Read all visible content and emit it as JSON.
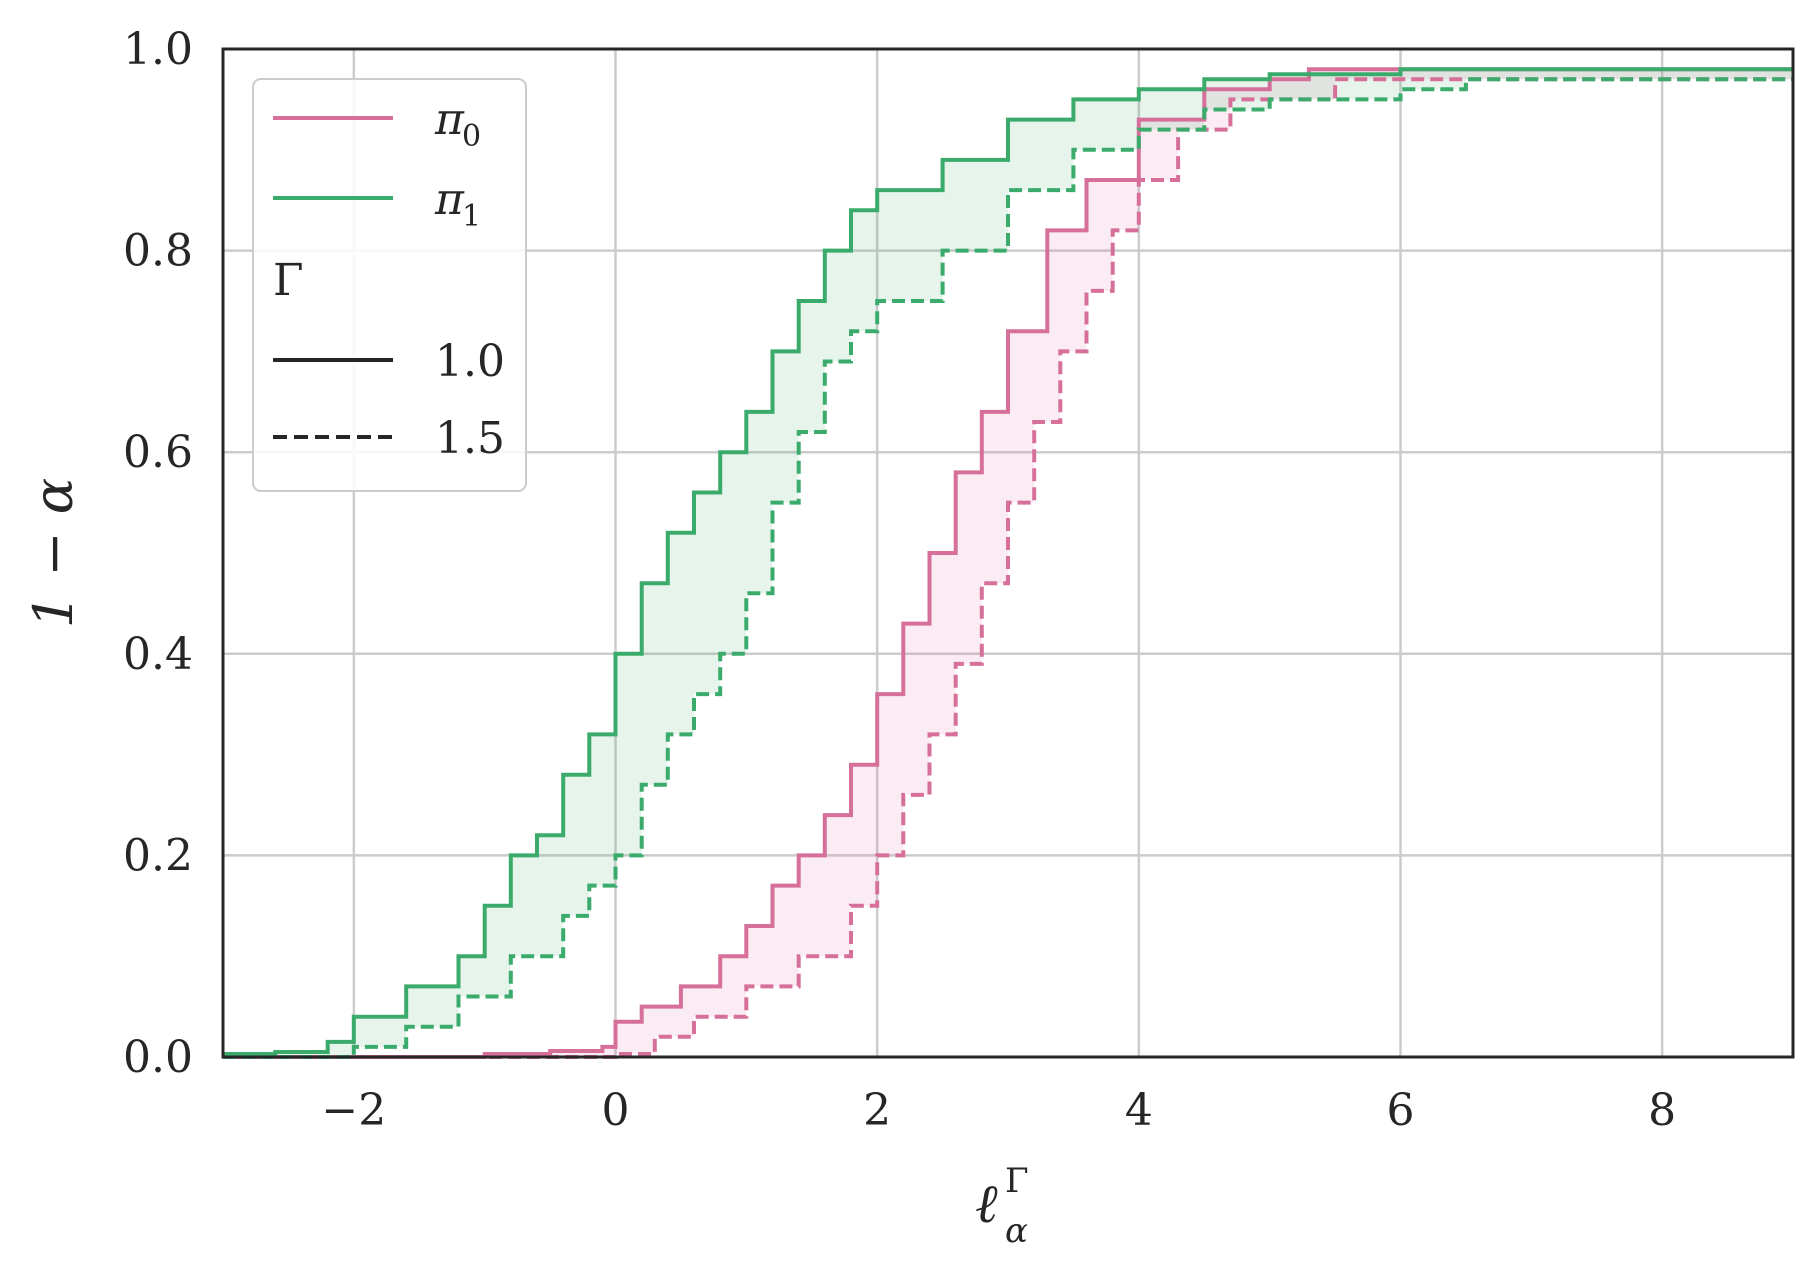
{
  "chart_data": {
    "type": "line",
    "xlabel_main": "ℓ",
    "xlabel_sub": "α",
    "xlabel_sup": "Γ",
    "ylabel": "1 − α",
    "xlim": [
      -3,
      9
    ],
    "ylim": [
      0,
      1
    ],
    "xticks": [
      -2,
      0,
      2,
      4,
      6,
      8
    ],
    "xtick_labels": [
      "−2",
      "0",
      "2",
      "4",
      "6",
      "8"
    ],
    "yticks": [
      0,
      0.2,
      0.4,
      0.6,
      0.8,
      1.0
    ],
    "ytick_labels": [
      "0.0",
      "0.2",
      "0.4",
      "0.6",
      "0.8",
      "1.0"
    ],
    "grid": true,
    "legend_position": "top-left",
    "legend": {
      "policy_entries": [
        {
          "label_main": "π",
          "label_sub": "0",
          "color": "#d6709b"
        },
        {
          "label_main": "π",
          "label_sub": "1",
          "color": "#3aab6b"
        }
      ],
      "title": "Γ",
      "style_entries": [
        {
          "label": "1.0",
          "dash": "solid"
        },
        {
          "label": "1.5",
          "dash": "dashed"
        }
      ]
    },
    "series": [
      {
        "policy": "π0",
        "gamma": "1.0",
        "color": "#d6709b",
        "dash": "solid",
        "x": [
          -3.0,
          -2.0,
          -1.0,
          -0.5,
          -0.1,
          0.0,
          0.2,
          0.5,
          0.8,
          1.0,
          1.2,
          1.4,
          1.6,
          1.8,
          2.0,
          2.2,
          2.4,
          2.6,
          2.8,
          3.0,
          3.3,
          3.6,
          4.0,
          4.5,
          5.0,
          5.3,
          6.5,
          9.0
        ],
        "y": [
          0.0,
          0.0,
          0.003,
          0.006,
          0.01,
          0.035,
          0.05,
          0.07,
          0.1,
          0.13,
          0.17,
          0.2,
          0.24,
          0.29,
          0.36,
          0.43,
          0.5,
          0.58,
          0.64,
          0.72,
          0.82,
          0.87,
          0.93,
          0.96,
          0.97,
          0.98,
          0.98,
          0.98
        ]
      },
      {
        "policy": "π0",
        "gamma": "1.5",
        "color": "#d6709b",
        "dash": "dashed",
        "x": [
          -3.0,
          -1.0,
          0.0,
          0.3,
          0.6,
          1.0,
          1.4,
          1.8,
          2.0,
          2.2,
          2.4,
          2.6,
          2.8,
          3.0,
          3.2,
          3.4,
          3.6,
          3.8,
          4.0,
          4.3,
          4.7,
          5.5,
          9.0
        ],
        "y": [
          0.0,
          0.0,
          0.003,
          0.02,
          0.04,
          0.07,
          0.1,
          0.15,
          0.2,
          0.26,
          0.32,
          0.39,
          0.47,
          0.55,
          0.63,
          0.7,
          0.76,
          0.82,
          0.87,
          0.92,
          0.95,
          0.97,
          0.97
        ]
      },
      {
        "policy": "π1",
        "gamma": "1.0",
        "color": "#3aab6b",
        "dash": "solid",
        "x": [
          -3.0,
          -2.6,
          -2.2,
          -2.0,
          -1.6,
          -1.2,
          -1.0,
          -0.8,
          -0.6,
          -0.4,
          -0.2,
          0.0,
          0.2,
          0.4,
          0.6,
          0.8,
          1.0,
          1.2,
          1.4,
          1.6,
          1.8,
          2.0,
          2.5,
          3.0,
          3.5,
          4.0,
          4.5,
          5.0,
          6.0,
          9.0
        ],
        "y": [
          0.003,
          0.005,
          0.015,
          0.04,
          0.07,
          0.1,
          0.15,
          0.2,
          0.22,
          0.28,
          0.32,
          0.4,
          0.47,
          0.52,
          0.56,
          0.6,
          0.64,
          0.7,
          0.75,
          0.8,
          0.84,
          0.86,
          0.89,
          0.93,
          0.95,
          0.96,
          0.97,
          0.975,
          0.98,
          0.98
        ]
      },
      {
        "policy": "π1",
        "gamma": "1.5",
        "color": "#3aab6b",
        "dash": "dashed",
        "x": [
          -3.0,
          -2.2,
          -2.0,
          -1.6,
          -1.2,
          -0.8,
          -0.6,
          -0.4,
          -0.2,
          0.0,
          0.2,
          0.4,
          0.6,
          0.8,
          1.0,
          1.2,
          1.4,
          1.6,
          1.8,
          2.0,
          2.5,
          3.0,
          3.5,
          4.0,
          4.5,
          5.0,
          6.0,
          6.5,
          9.0
        ],
        "y": [
          0.0,
          0.0,
          0.01,
          0.03,
          0.06,
          0.1,
          0.1,
          0.14,
          0.17,
          0.2,
          0.27,
          0.32,
          0.36,
          0.4,
          0.46,
          0.55,
          0.62,
          0.69,
          0.72,
          0.75,
          0.8,
          0.86,
          0.9,
          0.92,
          0.94,
          0.95,
          0.96,
          0.97,
          0.97
        ]
      }
    ],
    "fills": [
      {
        "between": [
          "π0 1.0",
          "π0 1.5"
        ],
        "color": "#d6709b",
        "opacity": 0.13
      },
      {
        "between": [
          "π1 1.0",
          "π1 1.5"
        ],
        "color": "#3aab6b",
        "opacity": 0.13
      }
    ]
  }
}
